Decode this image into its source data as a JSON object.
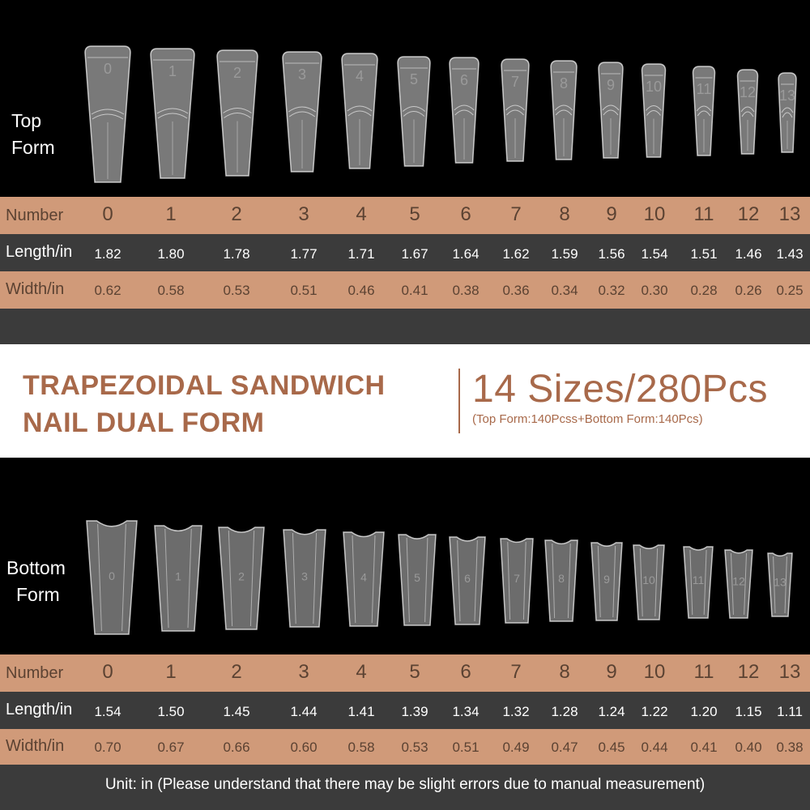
{
  "top": {
    "label_line1": "Top",
    "label_line2": "Form",
    "numbers": [
      "0",
      "1",
      "2",
      "3",
      "4",
      "5",
      "6",
      "7",
      "8",
      "9",
      "10",
      "11",
      "12",
      "13"
    ],
    "lengths": [
      "1.82",
      "1.80",
      "1.78",
      "1.77",
      "1.71",
      "1.67",
      "1.64",
      "1.62",
      "1.59",
      "1.56",
      "1.54",
      "1.51",
      "1.46",
      "1.43"
    ],
    "widths": [
      "0.62",
      "0.58",
      "0.53",
      "0.51",
      "0.46",
      "0.41",
      "0.38",
      "0.36",
      "0.34",
      "0.32",
      "0.30",
      "0.28",
      "0.26",
      "0.25"
    ]
  },
  "bottom": {
    "label_line1": "Bottom",
    "label_line2": "Form",
    "numbers": [
      "0",
      "1",
      "2",
      "3",
      "4",
      "5",
      "6",
      "7",
      "8",
      "9",
      "10",
      "11",
      "12",
      "13"
    ],
    "lengths": [
      "1.54",
      "1.50",
      "1.45",
      "1.44",
      "1.41",
      "1.39",
      "1.34",
      "1.32",
      "1.28",
      "1.24",
      "1.22",
      "1.20",
      "1.15",
      "1.11"
    ],
    "widths": [
      "0.70",
      "0.67",
      "0.66",
      "0.60",
      "0.58",
      "0.53",
      "0.51",
      "0.49",
      "0.47",
      "0.45",
      "0.44",
      "0.41",
      "0.40",
      "0.38"
    ]
  },
  "row_labels": {
    "number": "Number",
    "length": "Length/in",
    "width": "Width/in"
  },
  "banner": {
    "title_line1": "TRAPEZOIDAL SANDWICH",
    "title_line2": "NAIL DUAL FORM",
    "sizes": "14 Sizes/280Pcs",
    "sub": "(Top Form:140Pcss+Bottom Form:140Pcs)"
  },
  "footer": {
    "text": "Unit: in (Please understand that there may be slight errors due to manual measurement)"
  },
  "colors": {
    "brown_row": "#d09a79",
    "dark_row": "#3b3b3b",
    "banner_text": "#a8694a"
  }
}
